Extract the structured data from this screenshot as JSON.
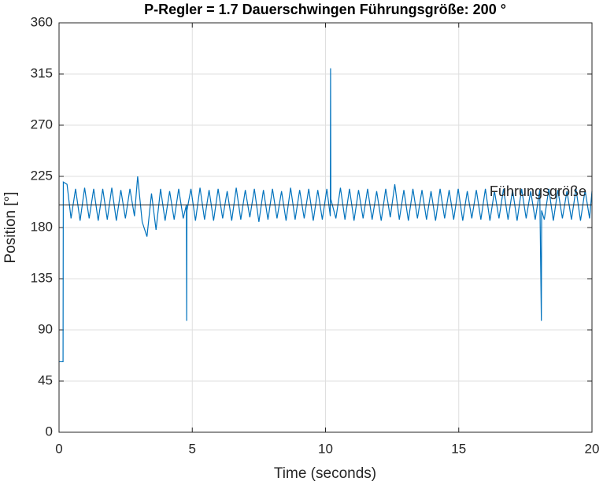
{
  "chart_data": {
    "type": "line",
    "title": "P-Regler =  1.7  Dauerschwingen   Führungsgröße:  200 °",
    "xlabel": "Time (seconds)",
    "ylabel": "Position [°]",
    "xlim": [
      0,
      20
    ],
    "xticks": [
      0,
      5,
      10,
      15,
      20
    ],
    "ylim": [
      0,
      360
    ],
    "yticks": [
      0,
      45,
      90,
      135,
      180,
      225,
      270,
      315,
      360
    ],
    "grid": true,
    "reference": {
      "value": 200,
      "label": "Führungsgröße",
      "color": "#262626"
    },
    "series": [
      {
        "color": "#0072bd",
        "x": [
          0,
          0.15,
          0.16,
          0.3,
          0.45,
          0.62,
          0.79,
          0.96,
          1.13,
          1.3,
          1.47,
          1.64,
          1.81,
          1.98,
          2.15,
          2.32,
          2.49,
          2.66,
          2.83,
          2.95,
          3.12,
          3.3,
          3.47,
          3.64,
          3.81,
          3.98,
          4.15,
          4.32,
          4.49,
          4.66,
          4.78,
          4.79,
          4.8,
          4.95,
          5.12,
          5.29,
          5.46,
          5.63,
          5.8,
          5.97,
          6.14,
          6.31,
          6.48,
          6.65,
          6.82,
          6.99,
          7.16,
          7.33,
          7.5,
          7.67,
          7.84,
          8.01,
          8.18,
          8.35,
          8.52,
          8.69,
          8.86,
          9.03,
          9.2,
          9.37,
          9.54,
          9.71,
          9.88,
          10.05,
          10.18,
          10.19,
          10.2,
          10.39,
          10.56,
          10.73,
          10.9,
          11.07,
          11.24,
          11.41,
          11.58,
          11.75,
          11.92,
          12.09,
          12.26,
          12.43,
          12.6,
          12.77,
          12.94,
          13.11,
          13.28,
          13.45,
          13.62,
          13.79,
          13.96,
          14.13,
          14.3,
          14.47,
          14.64,
          14.81,
          14.98,
          15.15,
          15.32,
          15.49,
          15.66,
          15.83,
          16.0,
          16.17,
          16.34,
          16.51,
          16.68,
          16.85,
          17.02,
          17.19,
          17.36,
          17.53,
          17.7,
          17.87,
          18.04,
          18.1,
          18.11,
          18.21,
          18.38,
          18.55,
          18.72,
          18.89,
          19.06,
          19.23,
          19.4,
          19.57,
          19.74,
          19.91,
          20
        ],
        "values": [
          62,
          62,
          220,
          218,
          188,
          214,
          186,
          215,
          188,
          214,
          186,
          214,
          187,
          215,
          186,
          213,
          188,
          214,
          190,
          225,
          185,
          172,
          210,
          178,
          214,
          186,
          212,
          187,
          214,
          188,
          200,
          98,
          195,
          214,
          186,
          215,
          187,
          213,
          186,
          214,
          188,
          212,
          186,
          215,
          187,
          213,
          189,
          214,
          185,
          213,
          187,
          214,
          188,
          212,
          186,
          215,
          187,
          213,
          188,
          214,
          186,
          213,
          187,
          214,
          190,
          320,
          205,
          188,
          215,
          187,
          214,
          186,
          213,
          188,
          214,
          187,
          212,
          186,
          214,
          189,
          218,
          187,
          213,
          186,
          214,
          188,
          213,
          187,
          212,
          186,
          214,
          188,
          213,
          187,
          214,
          186,
          212,
          188,
          213,
          187,
          214,
          186,
          212,
          188,
          214,
          187,
          213,
          186,
          214,
          188,
          212,
          187,
          213,
          98,
          195,
          187,
          214,
          186,
          213,
          188,
          212,
          187,
          214,
          186,
          213,
          188,
          212
        ]
      }
    ]
  }
}
